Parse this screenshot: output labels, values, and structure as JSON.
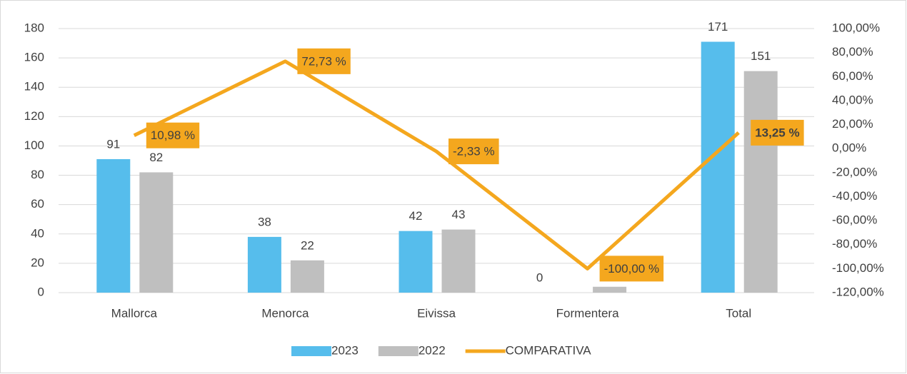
{
  "chart_data": {
    "type": "bar_line",
    "categories": [
      "Mallorca",
      "Menorca",
      "Eivissa",
      "Formentera",
      "Total"
    ],
    "series": [
      {
        "name": "2023",
        "color": "#56BDEC",
        "values": [
          91,
          38,
          42,
          0,
          171
        ]
      },
      {
        "name": "2022",
        "color": "#BFBFBF",
        "values": [
          82,
          22,
          43,
          4,
          151
        ],
        "value_labels": [
          "82",
          "22",
          "43",
          null,
          "151"
        ]
      },
      {
        "name": "COMPARATIVA",
        "color": "#F4A71E",
        "axis": "y2",
        "values": [
          10.98,
          72.73,
          -2.33,
          -100,
          13.25
        ],
        "value_labels": [
          "10,98 %",
          "72,73 %",
          "-2,33 %",
          "-100,00 %",
          "13,25 %"
        ]
      }
    ],
    "ylim": [
      0,
      180
    ],
    "yticks": [
      0,
      20,
      40,
      60,
      80,
      100,
      120,
      140,
      160,
      180
    ],
    "y2lim": [
      -120,
      100
    ],
    "y2ticks": [
      {
        "value": -120,
        "label": "-120,00%"
      },
      {
        "value": -100,
        "label": "-100,00%"
      },
      {
        "value": -80,
        "label": "-80,00%"
      },
      {
        "value": -60,
        "label": "-60,00%"
      },
      {
        "value": -40,
        "label": "-40,00%"
      },
      {
        "value": -20,
        "label": "-20,00%"
      },
      {
        "value": 0,
        "label": "0,00%"
      },
      {
        "value": 20,
        "label": "20,00%"
      },
      {
        "value": 40,
        "label": "40,00%"
      },
      {
        "value": 60,
        "label": "60,00%"
      },
      {
        "value": 80,
        "label": "80,00%"
      },
      {
        "value": 100,
        "label": "100,00%"
      }
    ],
    "grid": true,
    "legend": "bottom"
  }
}
